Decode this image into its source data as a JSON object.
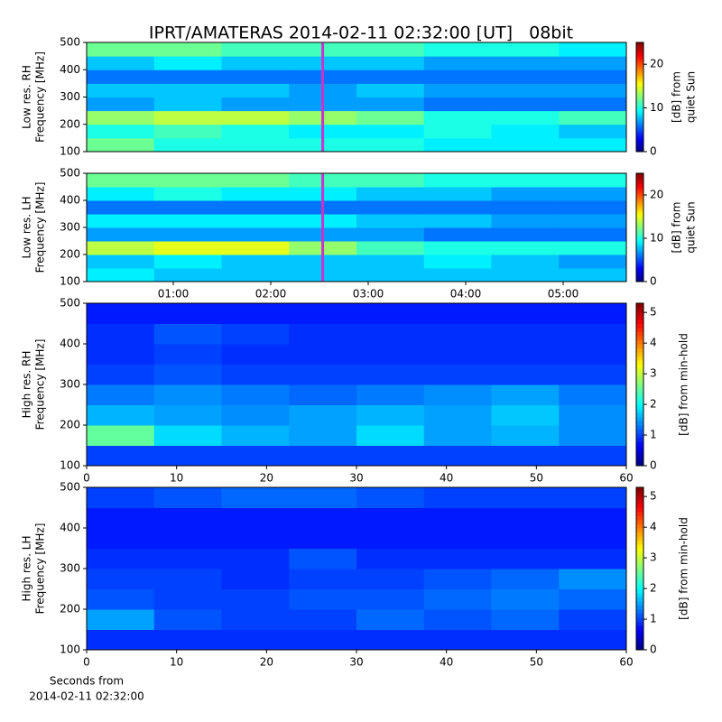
{
  "title": "IPRT/AMATERAS 2014-02-11 02:32:00 [UT]   08bit",
  "chart_data": [
    {
      "type": "heatmap",
      "ylabel": [
        "Low res. RH",
        "Frequency [MHz]"
      ],
      "xlim": [
        0.111,
        5.648
      ],
      "ylim": [
        100,
        500
      ],
      "yticks": [
        100,
        200,
        300,
        400,
        500
      ],
      "clim": [
        0,
        25
      ],
      "cticks": [
        0,
        10,
        20
      ],
      "clabel": [
        "[dB] from",
        "quiet Sun"
      ],
      "marker": {
        "x": 2.533,
        "color": "#cc33cc"
      },
      "z": [
        [
          12,
          10,
          10,
          10,
          10,
          9,
          9,
          9
        ],
        [
          10,
          11,
          10,
          9,
          9,
          10,
          9,
          8
        ],
        [
          13,
          14,
          14,
          13,
          12,
          10,
          10,
          11
        ],
        [
          7,
          8,
          7,
          7,
          7,
          6,
          6,
          6
        ],
        [
          8,
          8,
          8,
          7,
          8,
          7,
          7,
          7
        ],
        [
          6,
          6,
          6,
          6,
          6,
          6,
          6,
          6
        ],
        [
          8,
          9,
          8,
          8,
          8,
          7,
          7,
          7
        ],
        [
          12,
          12,
          11,
          11,
          11,
          10,
          10,
          9
        ]
      ]
    },
    {
      "type": "heatmap",
      "ylabel": [
        "Low res. LH",
        "Frequency [MHz]"
      ],
      "xlim": [
        0.111,
        5.648
      ],
      "ylim": [
        100,
        500
      ],
      "yticks": [
        100,
        200,
        300,
        400,
        500
      ],
      "xticks": [
        {
          "value": 1,
          "label": "01:00"
        },
        {
          "value": 2,
          "label": "02:00"
        },
        {
          "value": 3,
          "label": "03:00"
        },
        {
          "value": 4,
          "label": "04:00"
        },
        {
          "value": 5,
          "label": "05:00"
        }
      ],
      "clim": [
        0,
        25
      ],
      "cticks": [
        0,
        10,
        20
      ],
      "clabel": [
        "[dB] from",
        "quiet Sun"
      ],
      "marker": {
        "x": 2.533,
        "color": "#cc33cc"
      },
      "z": [
        [
          9,
          8,
          8,
          8,
          8,
          8,
          8,
          8
        ],
        [
          8,
          9,
          8,
          8,
          8,
          9,
          8,
          7
        ],
        [
          14,
          15,
          15,
          13,
          11,
          10,
          10,
          10
        ],
        [
          7,
          7,
          7,
          7,
          7,
          6,
          6,
          6
        ],
        [
          9,
          9,
          9,
          9,
          8,
          8,
          7,
          7
        ],
        [
          6,
          6,
          6,
          6,
          6,
          6,
          6,
          6
        ],
        [
          9,
          10,
          9,
          9,
          8,
          8,
          7,
          7
        ],
        [
          12,
          12,
          12,
          11,
          11,
          10,
          10,
          10
        ]
      ]
    },
    {
      "type": "heatmap",
      "ylabel": [
        "High res. RH",
        "Frequency [MHz]"
      ],
      "xlim": [
        0,
        60
      ],
      "ylim": [
        100,
        500
      ],
      "yticks": [
        100,
        200,
        300,
        400,
        500
      ],
      "xticks": [
        0,
        10,
        20,
        30,
        40,
        50,
        60
      ],
      "clim": [
        0,
        5.3
      ],
      "cticks": [
        0,
        1,
        2,
        3,
        4,
        5
      ],
      "clabel": [
        "[dB] from min-hold"
      ],
      "z": [
        [
          1.0,
          1.0,
          1.0,
          1.0,
          1.0,
          1.0,
          1.0,
          1.0
        ],
        [
          2.5,
          1.8,
          1.6,
          1.5,
          1.8,
          1.5,
          1.6,
          1.4
        ],
        [
          1.6,
          1.5,
          1.4,
          1.5,
          1.6,
          1.5,
          1.7,
          1.4
        ],
        [
          1.3,
          1.4,
          1.3,
          1.2,
          1.3,
          1.4,
          1.5,
          1.3
        ],
        [
          1.0,
          1.1,
          1.0,
          1.0,
          1.0,
          1.0,
          1.0,
          1.0
        ],
        [
          0.9,
          1.0,
          0.9,
          0.9,
          0.9,
          0.9,
          0.9,
          0.9
        ],
        [
          0.9,
          1.1,
          1.0,
          0.9,
          0.9,
          0.9,
          0.9,
          0.9
        ],
        [
          0.8,
          0.8,
          0.8,
          0.8,
          0.8,
          0.8,
          0.8,
          0.8
        ]
      ]
    },
    {
      "type": "heatmap",
      "ylabel": [
        "High res. LH",
        "Frequency [MHz]"
      ],
      "xlim": [
        0,
        60
      ],
      "ylim": [
        100,
        500
      ],
      "yticks": [
        100,
        200,
        300,
        400,
        500
      ],
      "xticks": [
        0,
        10,
        20,
        30,
        40,
        50,
        60
      ],
      "xlabel": [
        "Seconds from",
        "2014-02-11 02:32:00"
      ],
      "clim": [
        0,
        5.3
      ],
      "cticks": [
        0,
        1,
        2,
        3,
        4,
        5
      ],
      "clabel": [
        "[dB] from min-hold"
      ],
      "z": [
        [
          0.9,
          0.9,
          0.9,
          0.9,
          0.9,
          0.9,
          0.9,
          0.9
        ],
        [
          1.5,
          1.1,
          1.0,
          1.0,
          1.2,
          1.1,
          1.2,
          1.0
        ],
        [
          1.1,
          1.0,
          1.0,
          1.1,
          1.1,
          1.2,
          1.3,
          1.2
        ],
        [
          1.0,
          1.0,
          0.9,
          1.0,
          1.0,
          1.1,
          1.2,
          1.4
        ],
        [
          0.9,
          0.9,
          0.9,
          1.1,
          0.9,
          0.9,
          0.9,
          0.9
        ],
        [
          0.8,
          0.8,
          0.8,
          0.8,
          0.8,
          0.8,
          0.8,
          0.8
        ],
        [
          0.8,
          0.8,
          0.8,
          0.8,
          0.8,
          0.8,
          0.8,
          0.8
        ],
        [
          1.0,
          1.1,
          1.2,
          1.2,
          1.1,
          1.0,
          1.0,
          1.0
        ]
      ]
    }
  ]
}
